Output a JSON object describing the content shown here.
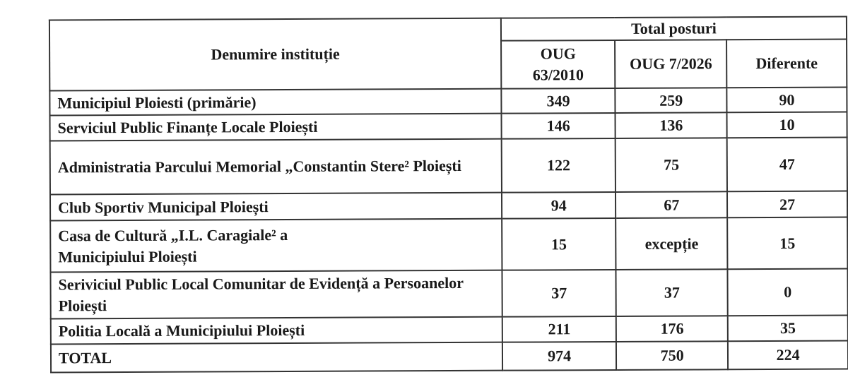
{
  "table": {
    "header": {
      "name_col": "Denumire instituție",
      "group": "Total posturi",
      "columns": [
        "OUG 63/2010",
        "OUG 7/2026",
        "Diferente"
      ]
    },
    "rows": [
      {
        "name": "Municipiul Ploiesti (primărie)",
        "oug63": "349",
        "oug7": "259",
        "diff": "90"
      },
      {
        "name": "Serviciul Public Finanțe Locale Ploiești",
        "oug63": "146",
        "oug7": "136",
        "diff": "10"
      },
      {
        "name": "Administratia Parcului Memorial „Constantin Stere² Ploiești",
        "oug63": "122",
        "oug7": "75",
        "diff": "47"
      },
      {
        "name": "Club Sportiv Municipal Ploiești",
        "oug63": "94",
        "oug7": "67",
        "diff": "27"
      },
      {
        "name": "Casa de Cultură „I.L. Caragiale² a Municipiului Ploiești",
        "oug63": "15",
        "oug7": "excepție",
        "diff": "15"
      },
      {
        "name": "Seriviciul Public Local Comunitar de Evidență a Persoanelor Ploiești",
        "oug63": "37",
        "oug7": "37",
        "diff": "0"
      },
      {
        "name": "Politia Locală a Municipiului Ploiești",
        "oug63": "211",
        "oug7": "176",
        "diff": "35"
      }
    ],
    "total": {
      "name": "TOTAL",
      "oug63": "974",
      "oug7": "750",
      "diff": "224"
    }
  }
}
